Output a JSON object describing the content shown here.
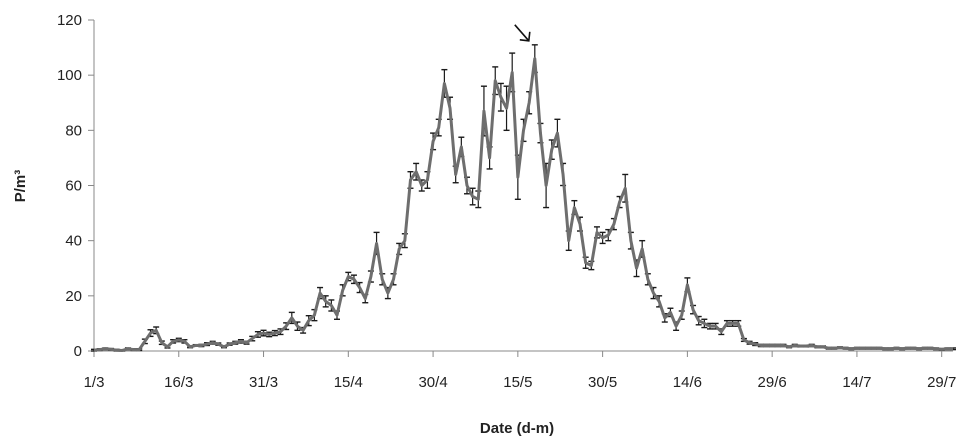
{
  "chart_data": {
    "type": "line",
    "title": "",
    "xlabel": "Date (d-m)",
    "ylabel": "P/m³",
    "ylim": [
      0,
      120
    ],
    "yticks": [
      0,
      20,
      40,
      60,
      80,
      100,
      120
    ],
    "x_tick_labels": [
      "1/3",
      "16/3",
      "31/3",
      "15/4",
      "30/4",
      "15/5",
      "30/5",
      "14/6",
      "29/6",
      "14/7",
      "29/7"
    ],
    "x_range": [
      "1/3",
      "31/7"
    ],
    "grid": false,
    "legend": "none",
    "line_color": "#6e6e6e",
    "error_bar_color": "#1a1a1a",
    "series": [
      {
        "x": [
          "1/3",
          "2/3",
          "3/3",
          "4/3",
          "5/3",
          "6/3",
          "7/3",
          "8/3",
          "9/3",
          "10/3",
          "11/3",
          "12/3",
          "13/3",
          "14/3",
          "15/3",
          "16/3",
          "17/3",
          "18/3",
          "19/3",
          "20/3",
          "21/3",
          "22/3",
          "23/3",
          "24/3",
          "25/3",
          "26/3",
          "27/3",
          "28/3",
          "29/3",
          "30/3",
          "31/3",
          "1/4",
          "2/4",
          "3/4",
          "4/4",
          "5/4",
          "6/4",
          "7/4",
          "8/4",
          "9/4",
          "10/4",
          "11/4",
          "12/4",
          "13/4",
          "14/4",
          "15/4",
          "16/4",
          "17/4",
          "18/4",
          "19/4",
          "20/4",
          "21/4",
          "22/4",
          "23/4",
          "24/4",
          "25/4",
          "26/4",
          "27/4",
          "28/4",
          "29/4",
          "30/4",
          "1/5",
          "2/5",
          "3/5",
          "4/5",
          "5/5",
          "6/5",
          "7/5",
          "8/5",
          "9/5",
          "10/5",
          "11/5",
          "12/5",
          "13/5",
          "14/5",
          "15/5",
          "16/5",
          "17/5",
          "18/5",
          "19/5",
          "20/5",
          "21/5",
          "22/5",
          "23/5",
          "24/5",
          "25/5",
          "26/5",
          "27/5",
          "28/5",
          "29/5",
          "30/5",
          "31/5",
          "1/6",
          "2/6",
          "3/6",
          "4/6",
          "5/6",
          "6/6",
          "7/6",
          "8/6",
          "9/6",
          "10/6",
          "11/6",
          "12/6",
          "13/6",
          "14/6",
          "15/6",
          "16/6",
          "17/6",
          "18/6",
          "19/6",
          "20/6",
          "21/6",
          "22/6",
          "23/6",
          "24/6",
          "25/6",
          "26/6",
          "27/6",
          "28/6",
          "29/6",
          "30/6",
          "1/7",
          "2/7",
          "3/7",
          "4/7",
          "5/7",
          "6/7",
          "7/7",
          "8/7",
          "9/7",
          "10/7",
          "11/7",
          "12/7",
          "13/7",
          "14/7",
          "15/7",
          "16/7",
          "17/7",
          "18/7",
          "19/7",
          "20/7",
          "21/7",
          "22/7",
          "23/7",
          "24/7",
          "25/7",
          "26/7",
          "27/7",
          "28/7",
          "29/7",
          "30/7",
          "31/7"
        ],
        "y": [
          0.3,
          0.5,
          0.8,
          0.6,
          0.3,
          0.2,
          0.8,
          0.5,
          0.5,
          3.5,
          6.5,
          7.5,
          3.0,
          1.5,
          3.5,
          4.0,
          3.5,
          1.5,
          2.0,
          2.0,
          2.5,
          3.0,
          2.5,
          1.5,
          2.5,
          3.0,
          3.5,
          3.0,
          4.5,
          6.0,
          6.5,
          6.0,
          6.5,
          7.0,
          9.0,
          12.0,
          9.0,
          7.5,
          11.0,
          13.0,
          21.0,
          18.0,
          16.5,
          13.0,
          22.0,
          27.0,
          26.0,
          23.0,
          19.0,
          27.0,
          39.0,
          26.0,
          21.0,
          26.0,
          37.0,
          40.0,
          62.0,
          65.0,
          60.0,
          62.0,
          76.0,
          81.0,
          97.0,
          88.0,
          64.0,
          74.0,
          60.0,
          56.0,
          55.0,
          87.0,
          70.0,
          98.0,
          92.0,
          88.0,
          101.0,
          63.0,
          80.0,
          90.0,
          106.0,
          79.0,
          60.0,
          73.0,
          79.0,
          64.0,
          40.0,
          52.0,
          46.0,
          32.0,
          31.0,
          43.0,
          41.0,
          42.0,
          46.0,
          54.0,
          59.0,
          40.0,
          30.0,
          37.0,
          26.0,
          21.0,
          18.0,
          12.0,
          14.0,
          9.0,
          13.0,
          24.0,
          15.0,
          11.0,
          10.0,
          9.0,
          9.0,
          7.0,
          10.0,
          10.0,
          10.0,
          4.0,
          3.0,
          2.5,
          2.0,
          2.0,
          2.0,
          2.0,
          2.0,
          1.5,
          2.0,
          1.8,
          1.8,
          2.0,
          1.5,
          1.5,
          1.0,
          1.0,
          1.2,
          1.0,
          0.8,
          1.0,
          1.0,
          1.0,
          1.0,
          1.0,
          0.8,
          0.8,
          1.0,
          0.8,
          1.0,
          1.0,
          0.8,
          1.0,
          1.0,
          0.8,
          0.6,
          0.8,
          0.8
        ],
        "err": [
          0.3,
          0.3,
          0.3,
          0.3,
          0.3,
          0.2,
          0.3,
          0.3,
          0.3,
          0.8,
          1.2,
          1.2,
          0.6,
          0.4,
          0.6,
          0.6,
          0.6,
          0.3,
          0.3,
          0.4,
          0.5,
          0.5,
          0.4,
          0.3,
          0.4,
          0.5,
          0.6,
          0.5,
          0.8,
          1.0,
          1.0,
          0.8,
          0.9,
          1.0,
          1.2,
          2.0,
          1.5,
          1.0,
          1.8,
          2.0,
          2.0,
          2.0,
          2.0,
          1.5,
          2.0,
          1.5,
          1.5,
          1.8,
          1.5,
          2.0,
          4.0,
          2.0,
          2.0,
          2.0,
          2.0,
          2.5,
          3.0,
          3.0,
          2.0,
          3.0,
          3.0,
          3.0,
          5.0,
          4.0,
          3.0,
          3.5,
          3.0,
          3.0,
          3.0,
          9.0,
          4.0,
          5.0,
          5.0,
          8.0,
          7.0,
          8.0,
          4.0,
          4.0,
          5.0,
          3.5,
          8.0,
          3.5,
          5.0,
          4.0,
          3.5,
          2.5,
          2.5,
          2.0,
          1.5,
          2.0,
          2.0,
          2.0,
          2.0,
          2.0,
          5.0,
          3.0,
          3.0,
          3.0,
          2.0,
          2.0,
          2.0,
          1.5,
          1.5,
          1.5,
          1.5,
          2.5,
          1.5,
          1.5,
          1.5,
          1.0,
          1.0,
          1.0,
          1.0,
          1.0,
          1.0,
          0.5,
          0.5,
          0.5,
          0.4,
          0.4,
          0.4,
          0.4,
          0.4,
          0.3,
          0.4,
          0.3,
          0.3,
          0.4,
          0.3,
          0.3,
          0.3,
          0.3,
          0.3,
          0.3,
          0.3,
          0.3,
          0.3,
          0.3,
          0.3,
          0.3,
          0.3,
          0.3,
          0.3,
          0.3,
          0.3,
          0.3,
          0.3,
          0.3,
          0.3,
          0.3,
          0.3,
          0.3,
          0.3
        ]
      }
    ],
    "annotation": {
      "type": "arrow",
      "points_to": "18/5"
    }
  }
}
